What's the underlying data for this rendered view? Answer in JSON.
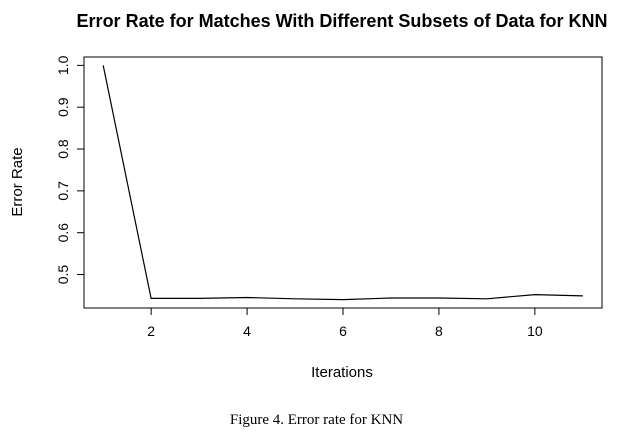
{
  "chart_data": {
    "type": "line",
    "title": "Error Rate for Matches With Different Subsets of Data for KNN",
    "xlabel": "Iterations",
    "ylabel": "Error Rate",
    "x": [
      1,
      2,
      3,
      4,
      5,
      6,
      7,
      8,
      9,
      10,
      11
    ],
    "series": [
      {
        "values": [
          1.0,
          0.443,
          0.443,
          0.445,
          0.442,
          0.44,
          0.444,
          0.444,
          0.442,
          0.452,
          0.449
        ]
      }
    ],
    "xlim": [
      0.6,
      11.4
    ],
    "ylim": [
      0.42,
      1.02
    ],
    "xticks": [
      2,
      4,
      6,
      8,
      10
    ],
    "xtick_labels": [
      "2",
      "4",
      "6",
      "8",
      "10"
    ],
    "yticks": [
      0.5,
      0.6,
      0.7,
      0.8,
      0.9,
      1.0
    ],
    "ytick_labels": [
      "0.5",
      "0.6",
      "0.7",
      "0.8",
      "0.9",
      "1.0"
    ],
    "line_color": "#000000",
    "grid": false,
    "legend": "none"
  },
  "caption": "Figure 4. Error rate for KNN"
}
